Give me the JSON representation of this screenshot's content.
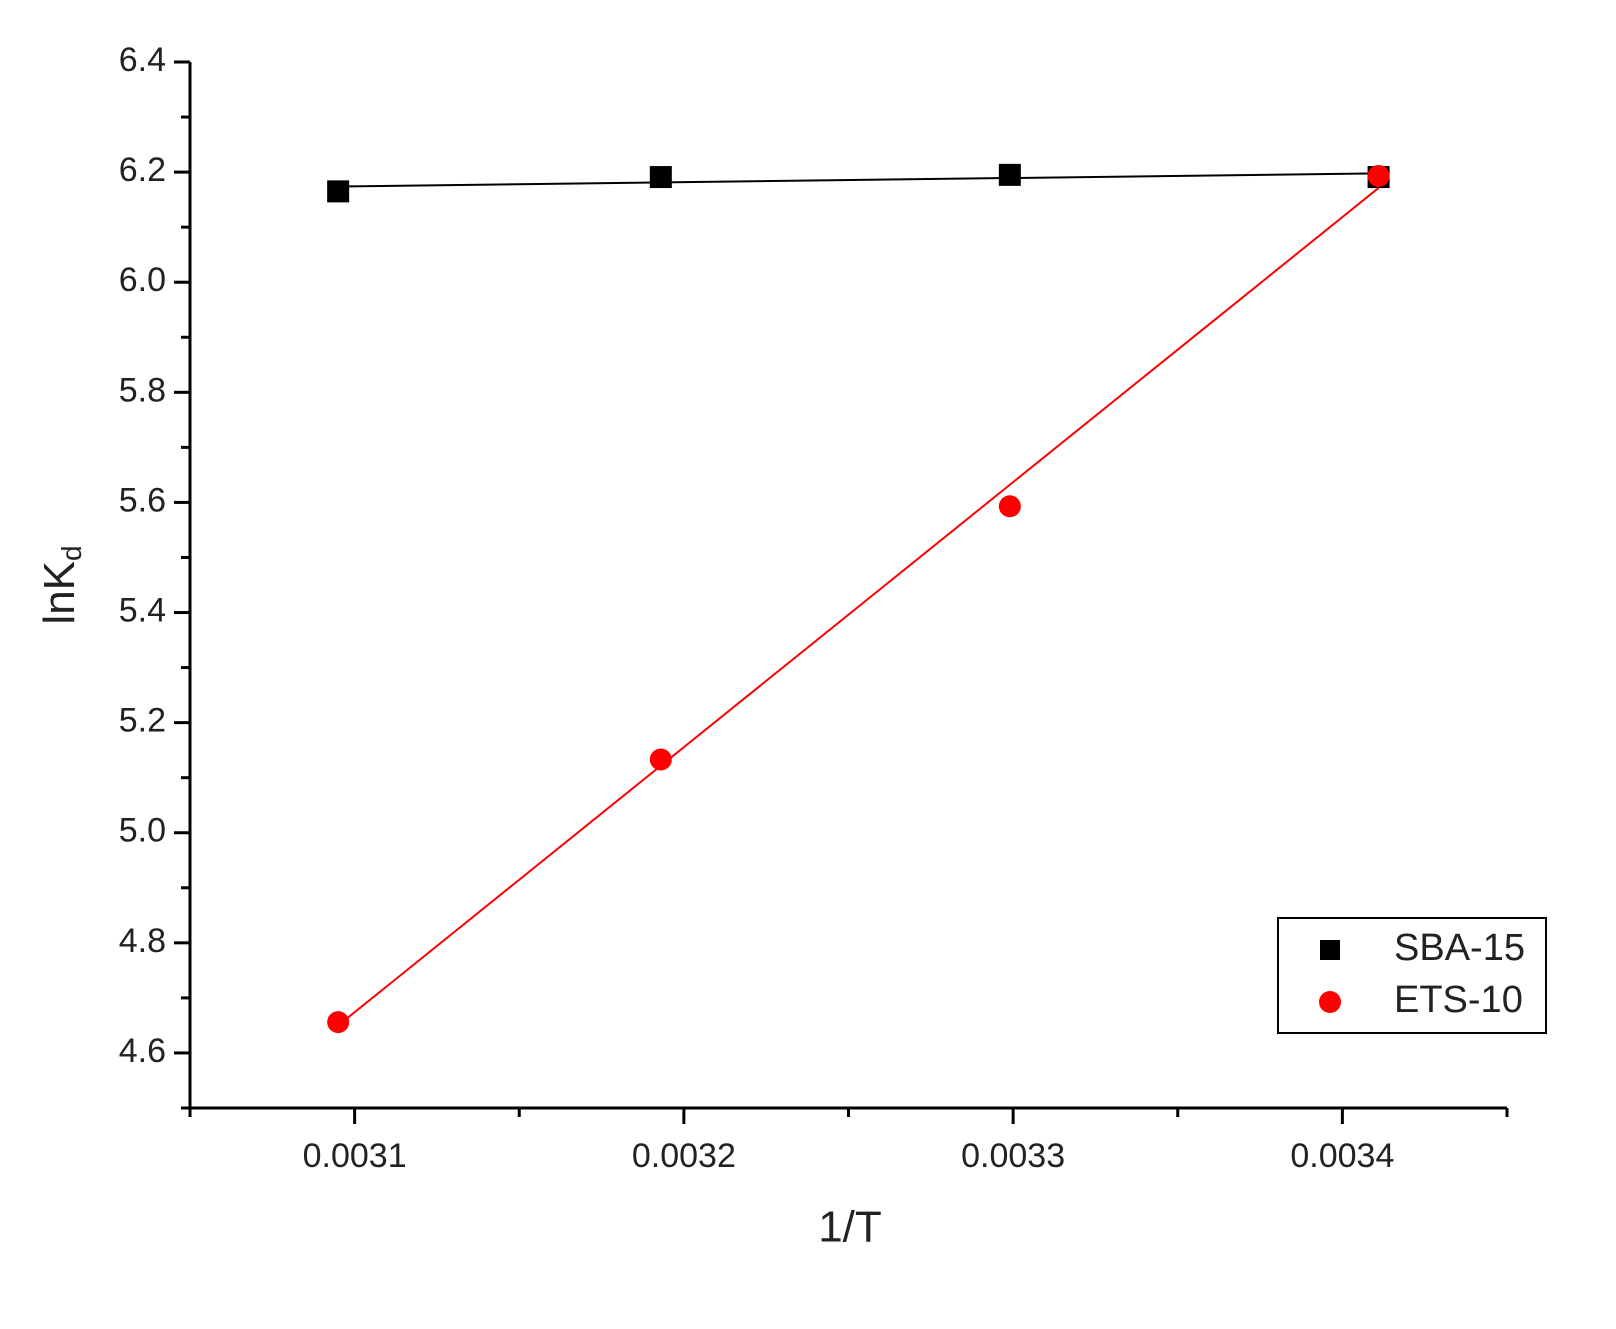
{
  "chart_data": {
    "type": "scatter",
    "xlabel": "1/T",
    "ylabel": "lnK",
    "ylabel_sub": "d",
    "xlim": [
      0.00305,
      0.00345
    ],
    "xticks": [
      0.0031,
      0.0032,
      0.0033,
      0.0034
    ],
    "xminorticks": [
      0.00305,
      0.00315,
      0.00325,
      0.00335,
      0.00345
    ],
    "ylim": [
      4.5,
      6.4
    ],
    "yticks": [
      4.6,
      4.8,
      {
        "value": 5,
        "label": "5.0"
      },
      5.2,
      5.4,
      5.6,
      5.8,
      {
        "value": 6,
        "label": "6.0"
      },
      6.2,
      6.4
    ],
    "yminorticks": [
      4.5,
      4.7,
      4.9,
      5.1,
      5.3,
      5.5,
      5.7,
      5.9,
      6.1,
      6.3
    ],
    "fit": true,
    "legend": "lower right",
    "series": [
      {
        "name": "SBA-15",
        "color": "#000000",
        "marker": "square",
        "x": [
          0.003095,
          0.003193,
          0.003299,
          0.003411
        ],
        "values": [
          6.165,
          6.191,
          6.195,
          6.191
        ]
      },
      {
        "name": "ETS-10",
        "color": "#ff0000",
        "marker": "circle",
        "x": [
          0.003095,
          0.003193,
          0.003299,
          0.003411
        ],
        "values": [
          4.656,
          5.133,
          5.593,
          6.193
        ]
      }
    ]
  }
}
